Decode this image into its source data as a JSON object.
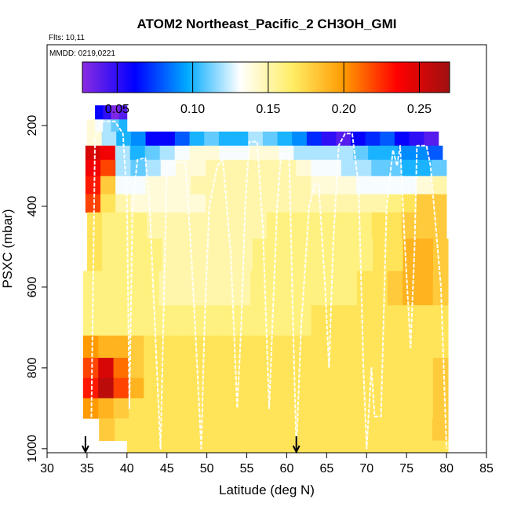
{
  "chart_data": {
    "type": "heatmap",
    "title": "ATOM2 Northeast_Pacific_2 CH3OH_GMI",
    "flights_label": "Flts: 10,11",
    "dates_label": "MMDD: 0219,0221",
    "xlabel": "Latitude (deg N)",
    "ylabel": "PSXC (mbar)",
    "xlim": [
      30,
      85
    ],
    "ylim": [
      1010,
      0
    ],
    "x_ticks": [
      30,
      35,
      40,
      45,
      50,
      55,
      60,
      65,
      70,
      75,
      80,
      85
    ],
    "y_ticks": [
      200,
      400,
      600,
      800,
      1000
    ],
    "colorbar": {
      "range": [
        0.027,
        0.27
      ],
      "ticks": [
        0.05,
        0.1,
        0.15,
        0.2,
        0.25
      ],
      "tick_labels": [
        "0.05",
        "0.10",
        "0.15",
        "0.20",
        "0.25"
      ],
      "colors": [
        "#8a2be2",
        "#0000ff",
        "#00aaff",
        "#ffffff",
        "#ffee66",
        "#ff9900",
        "#ff0000",
        "#a01010"
      ]
    },
    "markers": [
      {
        "lat": 34.8,
        "label": "down-arrow"
      },
      {
        "lat": 61.2,
        "label": "down-arrow"
      }
    ],
    "levels": [
      {
        "p": 170,
        "segments": [
          {
            "x0": 36.0,
            "x1": 40.0,
            "v": [
              0.06,
              0.05,
              0.03,
              0.04
            ]
          }
        ]
      },
      {
        "p": 200,
        "segments": [
          {
            "x0": 35.0,
            "x1": 40.0,
            "v": [
              0.14,
              0.13,
              0.12,
              0.11,
              0.1
            ]
          }
        ]
      },
      {
        "p": 230,
        "segments": [
          {
            "x0": 35.0,
            "x1": 79.0,
            "v": [
              0.14,
              0.12,
              0.1,
              0.09,
              0.06,
              0.06,
              0.08,
              0.1,
              0.11,
              0.1,
              0.1,
              0.12,
              0.11,
              0.1,
              0.09,
              0.07,
              0.05,
              0.04,
              0.06,
              0.07,
              0.08,
              0.06,
              0.05,
              0.04
            ]
          }
        ]
      },
      {
        "p": 270,
        "segments": [
          {
            "x0": 34.8,
            "x1": 79.5,
            "v": [
              0.25,
              0.24,
              0.12,
              0.1,
              0.11,
              0.12,
              0.13,
              0.14,
              0.14,
              0.13,
              0.13,
              0.14,
              0.14,
              0.13,
              0.12,
              0.12,
              0.12,
              0.12,
              0.11,
              0.1,
              0.1,
              0.09,
              0.09,
              0.08
            ]
          }
        ]
      },
      {
        "p": 300,
        "segments": [
          {
            "x0": 34.8,
            "x1": 80.0,
            "v": [
              0.24,
              0.22,
              0.12,
              0.11,
              0.12,
              0.13,
              0.14,
              0.14,
              0.15,
              0.15,
              0.15,
              0.15,
              0.15,
              0.15,
              0.14,
              0.13,
              0.13,
              0.12,
              0.12,
              0.11,
              0.11,
              0.1,
              0.1,
              0.11
            ]
          }
        ]
      },
      {
        "p": 350,
        "segments": [
          {
            "x0": 34.8,
            "x1": 80.0,
            "v": [
              0.23,
              0.18,
              0.13,
              0.13,
              0.14,
              0.14,
              0.14,
              0.15,
              0.15,
              0.15,
              0.15,
              0.15,
              0.15,
              0.15,
              0.15,
              0.14,
              0.14,
              0.14,
              0.13,
              0.13,
              0.13,
              0.13,
              0.14,
              0.15
            ]
          }
        ]
      },
      {
        "p": 390,
        "segments": [
          {
            "x0": 34.8,
            "x1": 80.0,
            "v": [
              0.22,
              0.17,
              0.15,
              0.14,
              0.14,
              0.14,
              0.14,
              0.14,
              0.15,
              0.15,
              0.15,
              0.15,
              0.15,
              0.15,
              0.15,
              0.15,
              0.15,
              0.15,
              0.15,
              0.15,
              0.16,
              0.17,
              0.18,
              0.18
            ]
          }
        ]
      },
      {
        "p": 440,
        "segments": [
          {
            "x0": 35.0,
            "x1": 80.0,
            "v": [
              0.17,
              0.16,
              0.16,
              0.16,
              0.15,
              0.15,
              0.15,
              0.15,
              0.15,
              0.15,
              0.15,
              0.15,
              0.16,
              0.16,
              0.16,
              0.16,
              0.16,
              0.16,
              0.16,
              0.17,
              0.17,
              0.18,
              0.18,
              0.18
            ]
          }
        ]
      },
      {
        "p": 520,
        "segments": [
          {
            "x0": 35.0,
            "x1": 80.2,
            "v": [
              0.17,
              0.16,
              0.16,
              0.16,
              0.16,
              0.15,
              0.15,
              0.15,
              0.15,
              0.15,
              0.15,
              0.16,
              0.16,
              0.16,
              0.16,
              0.16,
              0.16,
              0.16,
              0.16,
              0.17,
              0.17,
              0.19,
              0.19,
              0.18
            ]
          }
        ]
      },
      {
        "p": 600,
        "segments": [
          {
            "x0": 34.5,
            "x1": 80.2,
            "v": [
              0.16,
              0.16,
              0.16,
              0.16,
              0.16,
              0.15,
              0.15,
              0.15,
              0.15,
              0.15,
              0.15,
              0.16,
              0.16,
              0.16,
              0.16,
              0.16,
              0.16,
              0.16,
              0.17,
              0.17,
              0.18,
              0.19,
              0.19,
              0.18
            ]
          }
        ]
      },
      {
        "p": 690,
        "segments": [
          {
            "x0": 34.5,
            "x1": 80.2,
            "v": [
              0.16,
              0.16,
              0.16,
              0.16,
              0.16,
              0.16,
              0.16,
              0.16,
              0.16,
              0.16,
              0.16,
              0.16,
              0.16,
              0.16,
              0.16,
              0.17,
              0.17,
              0.17,
              0.17,
              0.17,
              0.17,
              0.17,
              0.17,
              0.17
            ]
          }
        ]
      },
      {
        "p": 750,
        "segments": [
          {
            "x0": 34.5,
            "x1": 80.2,
            "v": [
              0.2,
              0.19,
              0.19,
              0.18,
              0.17,
              0.17,
              0.17,
              0.17,
              0.17,
              0.17,
              0.17,
              0.17,
              0.17,
              0.17,
              0.17,
              0.17,
              0.17,
              0.17,
              0.17,
              0.17,
              0.17,
              0.17,
              0.17,
              0.17
            ]
          }
        ]
      },
      {
        "p": 800,
        "segments": [
          {
            "x0": 34.5,
            "x1": 80.2,
            "v": [
              0.22,
              0.25,
              0.21,
              0.18,
              0.17,
              0.17,
              0.17,
              0.17,
              0.17,
              0.17,
              0.17,
              0.17,
              0.17,
              0.17,
              0.17,
              0.17,
              0.17,
              0.17,
              0.17,
              0.17,
              0.17,
              0.17,
              0.17,
              0.18
            ]
          }
        ]
      },
      {
        "p": 850,
        "segments": [
          {
            "x0": 34.5,
            "x1": 80.2,
            "v": [
              0.23,
              0.26,
              0.22,
              0.19,
              0.17,
              0.17,
              0.17,
              0.17,
              0.17,
              0.17,
              0.17,
              0.17,
              0.17,
              0.17,
              0.17,
              0.17,
              0.17,
              0.17,
              0.17,
              0.17,
              0.17,
              0.17,
              0.17,
              0.18
            ]
          }
        ]
      },
      {
        "p": 900,
        "segments": [
          {
            "x0": 34.5,
            "x1": 80.2,
            "v": [
              0.2,
              0.19,
              0.18,
              0.17,
              0.17,
              0.17,
              0.17,
              0.17,
              0.17,
              0.17,
              0.17,
              0.17,
              0.17,
              0.17,
              0.17,
              0.17,
              0.17,
              0.17,
              0.17,
              0.17,
              0.17,
              0.17,
              0.17,
              0.18
            ]
          }
        ]
      },
      {
        "p": 950,
        "segments": [
          {
            "x0": 36.5,
            "x1": 80.2,
            "v": [
              0.18,
              0.17,
              0.17,
              0.17,
              0.17,
              0.17,
              0.17,
              0.17,
              0.17,
              0.17,
              0.17,
              0.17,
              0.17,
              0.17,
              0.17,
              0.17,
              0.17,
              0.17,
              0.17,
              0.17,
              0.17,
              0.18
            ]
          }
        ]
      },
      {
        "p": 1010,
        "segments": [
          {
            "x0": 40.0,
            "x1": 80.2,
            "v": [
              0.17,
              0.17,
              0.17,
              0.17,
              0.17,
              0.17,
              0.17,
              0.17,
              0.17,
              0.17,
              0.17,
              0.17,
              0.17,
              0.17,
              0.17,
              0.17,
              0.17,
              0.17,
              0.17,
              0.17
            ]
          }
        ]
      }
    ],
    "flight_track": [
      [
        35.5,
        990
      ],
      [
        36.0,
        230
      ],
      [
        36.8,
        190
      ],
      [
        38.5,
        190
      ],
      [
        39.5,
        220
      ],
      [
        40.0,
        380
      ],
      [
        40.3,
        900
      ],
      [
        40.7,
        400
      ],
      [
        41.3,
        285
      ],
      [
        42.3,
        280
      ],
      [
        42.8,
        380
      ],
      [
        43.5,
        700
      ],
      [
        44.2,
        1000
      ],
      [
        44.6,
        650
      ],
      [
        45.0,
        300
      ],
      [
        46.0,
        290
      ],
      [
        47.3,
        290
      ],
      [
        48.0,
        500
      ],
      [
        48.8,
        800
      ],
      [
        49.3,
        1000
      ],
      [
        49.7,
        700
      ],
      [
        50.3,
        400
      ],
      [
        51.3,
        300
      ],
      [
        52.0,
        285
      ],
      [
        53.0,
        520
      ],
      [
        53.8,
        900
      ],
      [
        54.3,
        700
      ],
      [
        54.8,
        400
      ],
      [
        55.3,
        240
      ],
      [
        56.3,
        240
      ],
      [
        57.0,
        450
      ],
      [
        57.8,
        900
      ],
      [
        58.2,
        700
      ],
      [
        58.8,
        400
      ],
      [
        59.3,
        270
      ],
      [
        60.3,
        270
      ],
      [
        60.8,
        700
      ],
      [
        61.2,
        1000
      ],
      [
        61.8,
        700
      ],
      [
        62.8,
        400
      ],
      [
        63.5,
        345
      ],
      [
        64.0,
        345
      ],
      [
        64.8,
        600
      ],
      [
        65.3,
        800
      ],
      [
        65.8,
        500
      ],
      [
        66.5,
        250
      ],
      [
        67.3,
        220
      ],
      [
        68.2,
        220
      ],
      [
        69.0,
        350
      ],
      [
        69.6,
        800
      ],
      [
        70.0,
        1000
      ],
      [
        70.6,
        800
      ],
      [
        71.0,
        920
      ],
      [
        71.8,
        920
      ],
      [
        72.5,
        400
      ],
      [
        73.3,
        260
      ],
      [
        73.8,
        300
      ],
      [
        74.2,
        250
      ],
      [
        74.8,
        500
      ],
      [
        75.5,
        750
      ],
      [
        76.0,
        500
      ],
      [
        76.3,
        250
      ],
      [
        77.5,
        250
      ],
      [
        78.0,
        300
      ],
      [
        79.3,
        600
      ],
      [
        80.0,
        1000
      ]
    ]
  }
}
